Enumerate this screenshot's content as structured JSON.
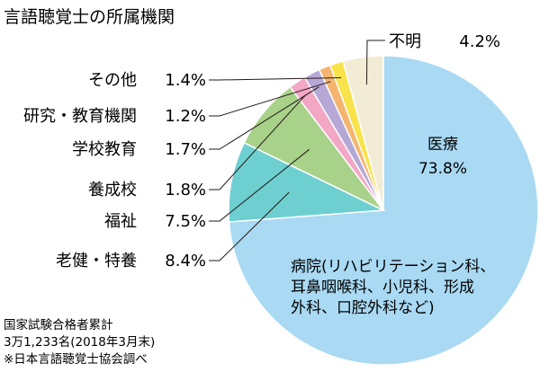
{
  "chart_data": {
    "type": "pie",
    "title": "言語聴覚士の所属機関",
    "slices": [
      {
        "label": "医療",
        "value": 73.8,
        "value_label": "73.8%",
        "color": "#a9d9f3"
      },
      {
        "label": "老健・特養",
        "value": 8.4,
        "value_label": "8.4%",
        "color": "#6ecfd1"
      },
      {
        "label": "福祉",
        "value": 7.5,
        "value_label": "7.5%",
        "color": "#a8d18a"
      },
      {
        "label": "養成校",
        "value": 1.8,
        "value_label": "1.8%",
        "color": "#f2a7c5"
      },
      {
        "label": "学校教育",
        "value": 1.7,
        "value_label": "1.7%",
        "color": "#b6a8d5"
      },
      {
        "label": "研究・教育機関",
        "value": 1.2,
        "value_label": "1.2%",
        "color": "#f5b56f"
      },
      {
        "label": "その他",
        "value": 1.4,
        "value_label": "1.4%",
        "color": "#f8e34b"
      },
      {
        "label": "不明",
        "value": 4.2,
        "value_label": "4.2%",
        "color": "#f3ecd5"
      }
    ],
    "inner_note": [
      "病院(リハビリテーション科、",
      "耳鼻咽喉科、小児科、形成",
      "外科、口腔外科など)"
    ],
    "footnote": [
      "国家試験合格者累計",
      "3万1,233名(2018年3月末)",
      "※日本言語聴覚士協会調べ"
    ]
  }
}
